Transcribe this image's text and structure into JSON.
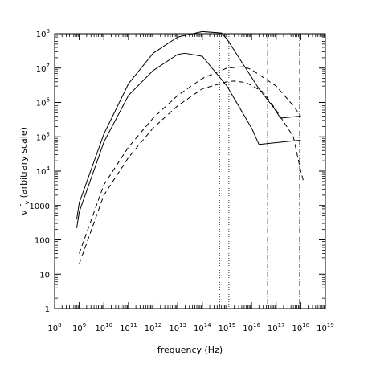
{
  "chart_data": {
    "type": "line",
    "xlabel": "frequency (Hz)",
    "ylabel": "ν f_ν (arbitrary scale)",
    "x_scale": "log",
    "y_scale": "log",
    "xlim": [
      100000000.0,
      1e+19
    ],
    "ylim": [
      1,
      100000000.0
    ],
    "grid": false,
    "legend": "none",
    "x_ticks": [
      {
        "value": 100000000.0,
        "base": "10",
        "exp": "8"
      },
      {
        "value": 1000000000.0,
        "base": "10",
        "exp": "9"
      },
      {
        "value": 10000000000.0,
        "base": "10",
        "exp": "10"
      },
      {
        "value": 100000000000.0,
        "base": "10",
        "exp": "11"
      },
      {
        "value": 1000000000000.0,
        "base": "10",
        "exp": "12"
      },
      {
        "value": 10000000000000.0,
        "base": "10",
        "exp": "13"
      },
      {
        "value": 100000000000000.0,
        "base": "10",
        "exp": "14"
      },
      {
        "value": 1000000000000000.0,
        "base": "10",
        "exp": "15"
      },
      {
        "value": 1e+16,
        "base": "10",
        "exp": "16"
      },
      {
        "value": 1e+17,
        "base": "10",
        "exp": "17"
      },
      {
        "value": 1e+18,
        "base": "10",
        "exp": "18"
      },
      {
        "value": 1e+19,
        "base": "10",
        "exp": "19"
      }
    ],
    "y_ticks": [
      {
        "value": 1,
        "base": "1",
        "exp": ""
      },
      {
        "value": 10,
        "base": "10",
        "exp": ""
      },
      {
        "value": 100,
        "base": "100",
        "exp": ""
      },
      {
        "value": 1000,
        "base": "1000",
        "exp": ""
      },
      {
        "value": 10000.0,
        "base": "10",
        "exp": "4"
      },
      {
        "value": 100000.0,
        "base": "10",
        "exp": "5"
      },
      {
        "value": 1000000.0,
        "base": "10",
        "exp": "6"
      },
      {
        "value": 10000000.0,
        "base": "10",
        "exp": "7"
      },
      {
        "value": 100000000.0,
        "base": "10",
        "exp": "8"
      }
    ],
    "series": [
      {
        "style": "solid",
        "points": [
          [
            790000000.0,
            400
          ],
          [
            1000000000.0,
            1200
          ],
          [
            10000000000.0,
            120000.0
          ],
          [
            100000000000.0,
            3500000.0
          ],
          [
            1000000000000.0,
            27000000.0
          ],
          [
            10000000000000.0,
            80000000.0
          ],
          [
            100000000000000.0,
            115000000.0
          ],
          [
            600000000000000.0,
            105000000.0
          ],
          [
            1000000000000000.0,
            70000000.0
          ],
          [
            4000000000000000.0,
            15000000.0
          ],
          [
            2e+16,
            2500000.0
          ],
          [
            8e+16,
            700000.0
          ],
          [
            1.5e+17,
            350000.0
          ],
          [
            1e+18,
            400000.0
          ]
        ]
      },
      {
        "style": "solid",
        "points": [
          [
            790000000.0,
            220
          ],
          [
            1000000000.0,
            650
          ],
          [
            10000000000.0,
            70000.0
          ],
          [
            100000000000.0,
            1600000.0
          ],
          [
            1000000000000.0,
            8500000.0
          ],
          [
            10000000000000.0,
            25000000.0
          ],
          [
            20000000000000.0,
            27000000.0
          ],
          [
            100000000000000.0,
            22000000.0
          ],
          [
            1000000000000000.0,
            3000000.0
          ],
          [
            1e+16,
            180000.0
          ],
          [
            2e+16,
            60000.0
          ],
          [
            1e+18,
            80000.0
          ]
        ]
      },
      {
        "style": "dashed",
        "points": [
          [
            1000000000.0,
            40
          ],
          [
            10000000000.0,
            4000.0
          ],
          [
            100000000000.0,
            50000.0
          ],
          [
            1000000000000.0,
            350000.0
          ],
          [
            10000000000000.0,
            1600000.0
          ],
          [
            100000000000000.0,
            5000000.0
          ],
          [
            1000000000000000.0,
            10000000.0
          ],
          [
            5000000000000000.0,
            11000000.0
          ],
          [
            1e+16,
            9000000.0
          ],
          [
            1e+17,
            3000000.0
          ],
          [
            5e+17,
            800000.0
          ],
          [
            1e+18,
            400000.0
          ]
        ]
      },
      {
        "style": "dashed",
        "points": [
          [
            1000000000.0,
            20
          ],
          [
            10000000000.0,
            2000.0
          ],
          [
            100000000000.0,
            25000.0
          ],
          [
            1000000000000.0,
            180000.0
          ],
          [
            10000000000000.0,
            800000.0
          ],
          [
            100000000000000.0,
            2500000.0
          ],
          [
            1000000000000000.0,
            4000000.0
          ],
          [
            2000000000000000.0,
            4200000.0
          ],
          [
            6000000000000000.0,
            3800000.0
          ],
          [
            3e+16,
            2000000.0
          ],
          [
            1e+17,
            600000.0
          ],
          [
            5e+17,
            100000.0
          ],
          [
            1e+18,
            10000.0
          ],
          [
            1.3e+18,
            5000.0
          ]
        ]
      }
    ],
    "vertical_lines": [
      {
        "x": 500000000000000.0,
        "style": "dotted"
      },
      {
        "x": 1200000000000000.0,
        "style": "dotted"
      },
      {
        "x": 4.5e+16,
        "style": "dashdot"
      },
      {
        "x": 9e+17,
        "style": "dashdot"
      }
    ]
  }
}
